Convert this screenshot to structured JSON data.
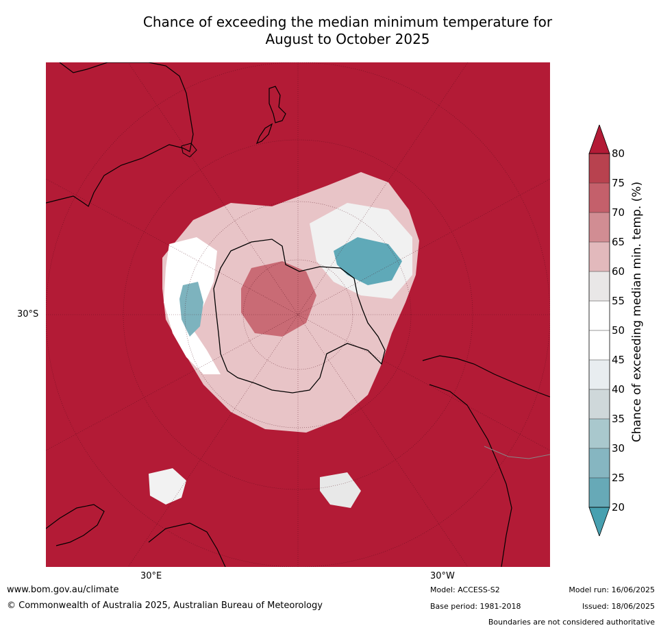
{
  "title": {
    "line1": "Chance of exceeding the median minimum temperature for",
    "line2": "August to October 2025"
  },
  "map": {
    "projection": "south polar stereographic",
    "lat_label": "30°S",
    "lon_labels": {
      "east": "30°E",
      "west": "30°W"
    },
    "background_color": "#b31b36",
    "visible_regions": [
      "Australia",
      "New Zealand",
      "Antarctica",
      "South America",
      "Southern Africa"
    ]
  },
  "colorbar": {
    "title": "Chance of exceeding median min. temp. (%)",
    "ticks": [
      "80",
      "75",
      "70",
      "65",
      "60",
      "55",
      "50",
      "45",
      "40",
      "35",
      "30",
      "25",
      "20"
    ],
    "colors": [
      "#b8424f",
      "#c4606b",
      "#d18d93",
      "#e2b9bc",
      "#e9e7e7",
      "#ffffff",
      "#ffffff",
      "#e8edf0",
      "#cfd8da",
      "#a9c8cd",
      "#86b6c1",
      "#67a9b7",
      "#47a0b0"
    ],
    "extend_high_color": "#b31b36",
    "extend_low_color": "#47a0b0"
  },
  "footer": {
    "website": "www.bom.gov.au/climate",
    "copyright": "© Commonwealth of Australia 2025, Australian Bureau of Meteorology",
    "model": "Model: ACCESS-S2",
    "base_period": "Base period: 1981-2018",
    "model_run": "Model run: 16/06/2025",
    "issued": "Issued: 18/06/2025",
    "disclaimer": "Boundaries are not considered authoritative"
  }
}
